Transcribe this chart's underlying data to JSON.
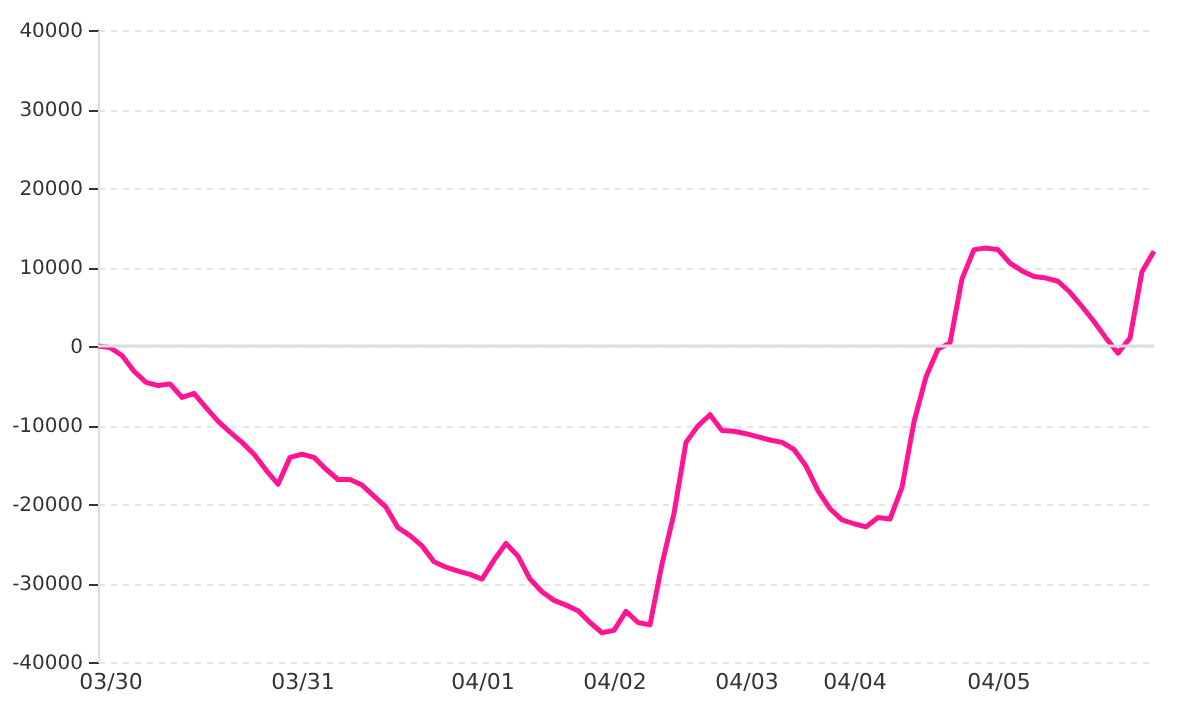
{
  "chart_data": {
    "type": "line",
    "ylim": [
      -40000,
      40000
    ],
    "yticks": [
      -40000,
      -30000,
      -20000,
      -10000,
      0,
      10000,
      20000,
      30000,
      40000
    ],
    "categories": [
      null,
      "03/30",
      null,
      null,
      null,
      null,
      null,
      null,
      null,
      null,
      null,
      null,
      null,
      null,
      null,
      null,
      null,
      "03/31",
      null,
      null,
      null,
      null,
      null,
      null,
      null,
      null,
      null,
      null,
      null,
      null,
      null,
      null,
      "04/01",
      null,
      null,
      null,
      null,
      null,
      null,
      null,
      null,
      null,
      null,
      "04/02",
      null,
      null,
      null,
      null,
      null,
      null,
      null,
      null,
      null,
      null,
      "04/03",
      null,
      null,
      null,
      null,
      null,
      null,
      null,
      null,
      "04/04",
      null,
      null,
      null,
      null,
      null,
      null,
      null,
      null,
      null,
      null,
      null,
      "04/05",
      null,
      null,
      null,
      null,
      null,
      null,
      null,
      null,
      null,
      null,
      null,
      null,
      null
    ],
    "grid": "y",
    "legend": false,
    "marker": "none",
    "line_style": "solid",
    "ref_lines": [
      {
        "axis": "y",
        "value": 0,
        "label": null,
        "color": "#dddddd",
        "line_style": "solid"
      }
    ],
    "series": [
      {
        "color": "#ff1493",
        "values": [
          0,
          -200,
          -1200,
          -3200,
          -4600,
          -5000,
          -4800,
          -6500,
          -6000,
          -7800,
          -9500,
          -10900,
          -12200,
          -13700,
          -15700,
          -17500,
          -14100,
          -13700,
          -14100,
          -15600,
          -16900,
          -16900,
          -17600,
          -19000,
          -20400,
          -23000,
          -24000,
          -25300,
          -27300,
          -28000,
          -28500,
          -28900,
          -29500,
          -27100,
          -25000,
          -26600,
          -29500,
          -31100,
          -32200,
          -32800,
          -33500,
          -35000,
          -36300,
          -36000,
          -33600,
          -35000,
          -35300,
          -27600,
          -21200,
          -12200,
          -10100,
          -8700,
          -10700,
          -10800,
          -11100,
          -11500,
          -11900,
          -12200,
          -13100,
          -15200,
          -18300,
          -20600,
          -22000,
          -22500,
          -22900,
          -21700,
          -21900,
          -17900,
          -9600,
          -3900,
          -400,
          400,
          8500,
          12200,
          12400,
          12200,
          10500,
          9500,
          8800,
          8600,
          8200,
          6800,
          5000,
          3100,
          1000,
          -900,
          1000,
          9400,
          12000
        ]
      }
    ]
  }
}
